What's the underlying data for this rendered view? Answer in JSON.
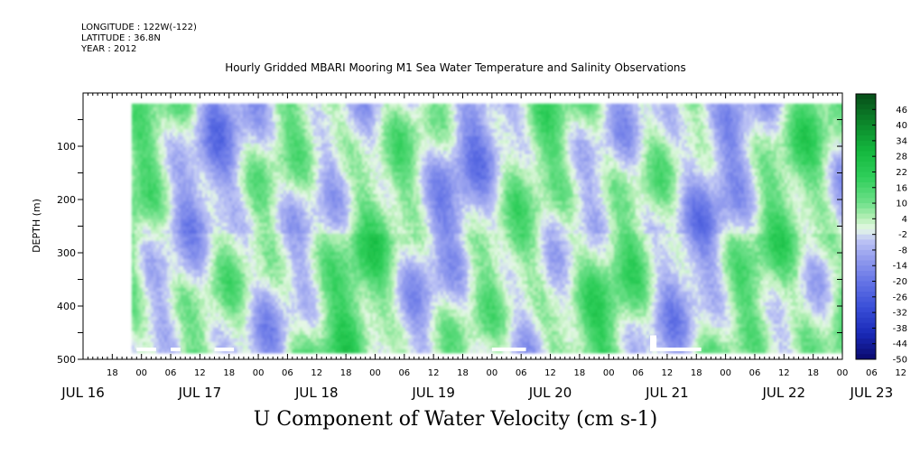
{
  "header": {
    "longitude": "LONGITUDE : 122W(-122)",
    "latitude": "LATITUDE : 36.8N",
    "year": "YEAR : 2012"
  },
  "title": "Hourly Gridded MBARI Mooring M1 Sea Water Temperature and Salinity Observations",
  "footer": "U Component of Water Velocity (cm s-1)",
  "chart_data": {
    "type": "heatmap",
    "title": "Hourly Gridded MBARI Mooring M1 Sea Water Temperature and Salinity Observations",
    "xlabel": "",
    "ylabel": "DEPTH (m)",
    "x_unit": "hours since JUL 16 00:00, 2012",
    "xlim": [
      -12,
      144
    ],
    "ylim": [
      500,
      0
    ],
    "y_inverted": true,
    "y_ticks": [
      100,
      200,
      300,
      400,
      500
    ],
    "x_hour_ticks": [
      "18",
      "00",
      "06",
      "12",
      "18",
      "00",
      "06",
      "12",
      "18",
      "00",
      "06",
      "12",
      "18",
      "00",
      "06",
      "12",
      "18",
      "00",
      "06",
      "12",
      "18",
      "00",
      "06",
      "12",
      "18",
      "00",
      "06",
      "12",
      "18",
      "00",
      "06",
      "12"
    ],
    "x_day_labels": [
      {
        "label": "JUL 16",
        "hour": -12
      },
      {
        "label": "JUL 17",
        "hour": 12
      },
      {
        "label": "JUL 18",
        "hour": 36
      },
      {
        "label": "JUL 19",
        "hour": 60
      },
      {
        "label": "JUL 20",
        "hour": 84
      },
      {
        "label": "JUL 21",
        "hour": 108
      },
      {
        "label": "JUL 22",
        "hour": 132
      },
      {
        "label": "JUL 23",
        "hour": 150
      }
    ],
    "data_extent": {
      "x": [
        -2,
        146
      ],
      "y": [
        20,
        485
      ]
    },
    "colorbar": {
      "ticks": [
        46,
        40,
        34,
        28,
        22,
        16,
        10,
        4,
        -2,
        -8,
        -14,
        -20,
        -26,
        -32,
        -38,
        -44,
        -50
      ],
      "min": -50,
      "max": 52,
      "colors": {
        "-50": "#0a0a6e",
        "-40": "#1a2ab8",
        "-30": "#3a4fd8",
        "-20": "#6675e6",
        "-10": "#9aa3ef",
        "-4": "#bfc6f5",
        "0": "#e6f8e6",
        "4": "#b8f0b8",
        "10": "#6fe08a",
        "20": "#2fce5a",
        "30": "#14b83e",
        "40": "#0c8a2c",
        "52": "#064d18"
      }
    },
    "grid": false,
    "legend": "right colorbar"
  }
}
